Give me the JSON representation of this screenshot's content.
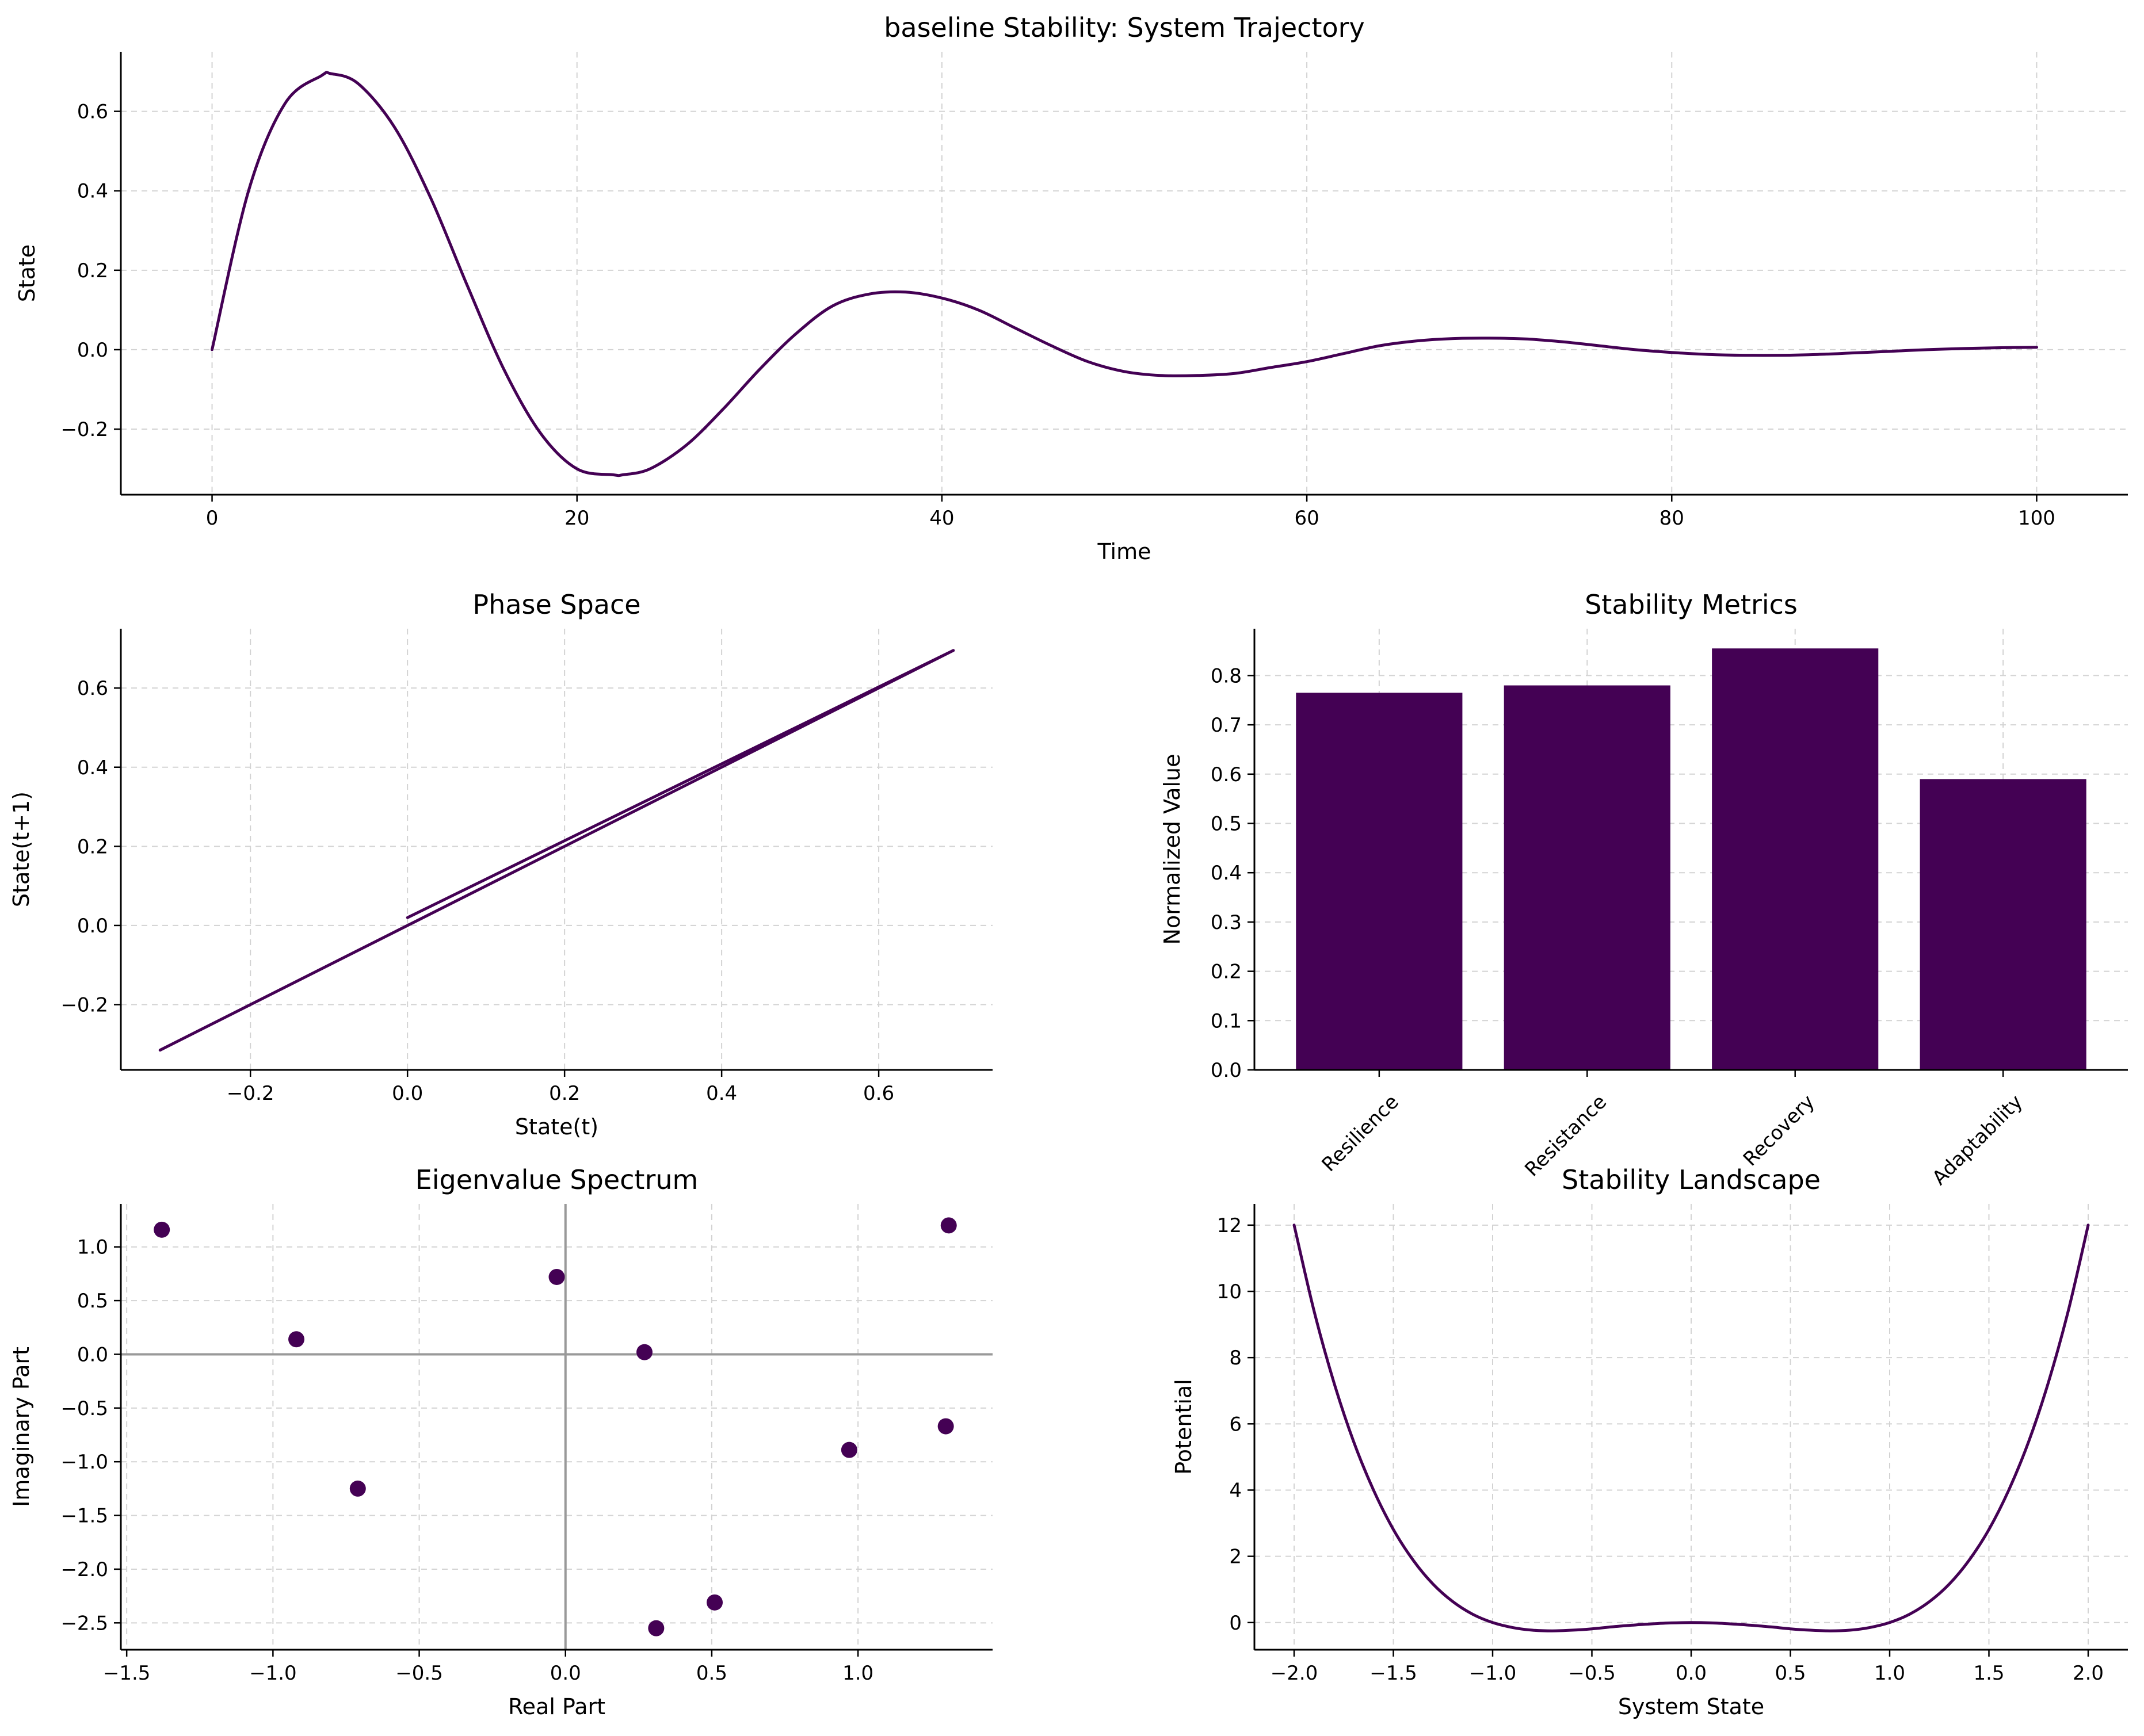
{
  "colors": {
    "series": "#440154",
    "grid": "#d3d3d3",
    "axis": "#000000",
    "zero_line": "#999999"
  },
  "chart_data": [
    {
      "id": "trajectory",
      "type": "line",
      "title": "baseline Stability: System Trajectory",
      "xlabel": "Time",
      "ylabel": "State",
      "xlim": [
        -5,
        105
      ],
      "ylim": [
        -0.365,
        0.75
      ],
      "xticks": [
        0,
        20,
        40,
        60,
        80,
        100
      ],
      "yticks": [
        -0.2,
        0.0,
        0.2,
        0.4,
        0.6
      ],
      "grid": true,
      "series": [
        {
          "x": [
            0,
            2,
            4,
            6,
            6.5,
            8,
            10,
            12,
            14,
            16,
            18,
            20,
            22,
            22.5,
            24,
            26,
            28,
            30,
            32,
            34,
            36,
            38,
            40,
            42,
            44,
            46,
            48,
            50,
            52,
            54,
            56,
            58,
            60,
            62,
            64,
            66,
            68,
            70,
            72,
            74,
            76,
            78,
            80,
            82,
            84,
            86,
            88,
            90,
            92,
            94,
            96,
            98,
            100
          ],
          "y": [
            0.0,
            0.4,
            0.62,
            0.69,
            0.695,
            0.67,
            0.56,
            0.38,
            0.16,
            -0.05,
            -0.21,
            -0.3,
            -0.315,
            -0.315,
            -0.3,
            -0.24,
            -0.15,
            -0.05,
            0.04,
            0.11,
            0.14,
            0.145,
            0.13,
            0.1,
            0.055,
            0.01,
            -0.03,
            -0.055,
            -0.065,
            -0.065,
            -0.06,
            -0.045,
            -0.03,
            -0.01,
            0.01,
            0.022,
            0.028,
            0.029,
            0.027,
            0.02,
            0.01,
            0.0,
            -0.007,
            -0.012,
            -0.014,
            -0.014,
            -0.012,
            -0.008,
            -0.004,
            0.0,
            0.003,
            0.005,
            0.006
          ]
        }
      ]
    },
    {
      "id": "phase",
      "type": "line",
      "title": "Phase Space",
      "xlabel": "State(t)",
      "ylabel": "State(t+1)",
      "xlim": [
        -0.365,
        0.745
      ],
      "ylim": [
        -0.365,
        0.75
      ],
      "xticks": [
        -0.2,
        0.0,
        0.2,
        0.4,
        0.6
      ],
      "yticks": [
        -0.2,
        0.0,
        0.2,
        0.4,
        0.6
      ],
      "grid": true,
      "series": [
        {
          "x": [
            0.0,
            0.695,
            -0.315,
            0.145,
            -0.065,
            0.029,
            -0.014,
            0.006
          ],
          "y": [
            0.02,
            0.695,
            -0.315,
            0.145,
            -0.065,
            0.029,
            -0.014,
            0.006
          ]
        }
      ]
    },
    {
      "id": "metrics",
      "type": "bar",
      "title": "Stability Metrics",
      "xlabel": "",
      "ylabel": "Normalized Value",
      "categories": [
        "Resilience",
        "Resistance",
        "Recovery",
        "Adaptability"
      ],
      "values": [
        0.765,
        0.78,
        0.855,
        0.59
      ],
      "ylim": [
        0,
        0.895
      ],
      "yticks": [
        0.0,
        0.1,
        0.2,
        0.3,
        0.4,
        0.5,
        0.6,
        0.7,
        0.8
      ],
      "grid": true
    },
    {
      "id": "eigen",
      "type": "scatter",
      "title": "Eigenvalue Spectrum",
      "xlabel": "Real Part",
      "ylabel": "Imaginary Part",
      "xlim": [
        -1.52,
        1.46
      ],
      "ylim": [
        -2.75,
        1.4
      ],
      "xticks": [
        -1.5,
        -1.0,
        -0.5,
        0.0,
        0.5,
        1.0
      ],
      "yticks": [
        -2.5,
        -2.0,
        -1.5,
        -1.0,
        -0.5,
        0.0,
        0.5,
        1.0
      ],
      "grid": true,
      "series": [
        {
          "x": [
            -1.38,
            -0.92,
            -0.71,
            -0.03,
            0.27,
            0.31,
            0.51,
            0.97,
            1.3,
            1.31
          ],
          "y": [
            1.16,
            0.14,
            -1.25,
            0.72,
            0.02,
            -2.55,
            -2.31,
            -0.89,
            -0.67,
            1.2
          ]
        }
      ]
    },
    {
      "id": "landscape",
      "type": "line",
      "title": "Stability Landscape",
      "xlabel": "System State",
      "ylabel": "Potential",
      "xlim": [
        -2.2,
        2.2
      ],
      "ylim": [
        -0.82,
        12.64
      ],
      "xticks": [
        -2.0,
        -1.5,
        -1.0,
        -0.5,
        0.0,
        0.5,
        1.0,
        1.5,
        2.0
      ],
      "yticks": [
        0,
        2,
        4,
        6,
        8,
        10,
        12
      ],
      "grid": true,
      "series": [
        {
          "x": [
            -2.0,
            -1.9,
            -1.8,
            -1.7,
            -1.6,
            -1.5,
            -1.4,
            -1.3,
            -1.2,
            -1.1,
            -1.0,
            -0.9,
            -0.8,
            -0.7,
            -0.6,
            -0.5,
            -0.4,
            -0.3,
            -0.2,
            -0.1,
            0.0,
            0.1,
            0.2,
            0.3,
            0.4,
            0.5,
            0.6,
            0.7,
            0.8,
            0.9,
            1.0,
            1.1,
            1.2,
            1.3,
            1.4,
            1.5,
            1.6,
            1.7,
            1.8,
            1.9,
            2.0
          ],
          "y": [
            12.0,
            9.42,
            7.26,
            5.46,
            4.0,
            2.81,
            1.88,
            1.16,
            0.63,
            0.25,
            0.0,
            -0.15,
            -0.23,
            -0.25,
            -0.23,
            -0.19,
            -0.13,
            -0.08,
            -0.04,
            -0.01,
            0.0,
            -0.01,
            -0.04,
            -0.08,
            -0.13,
            -0.19,
            -0.23,
            -0.25,
            -0.23,
            -0.15,
            0.0,
            0.25,
            0.63,
            1.16,
            1.88,
            2.81,
            4.0,
            5.46,
            7.26,
            9.42,
            12.0
          ]
        }
      ]
    }
  ]
}
